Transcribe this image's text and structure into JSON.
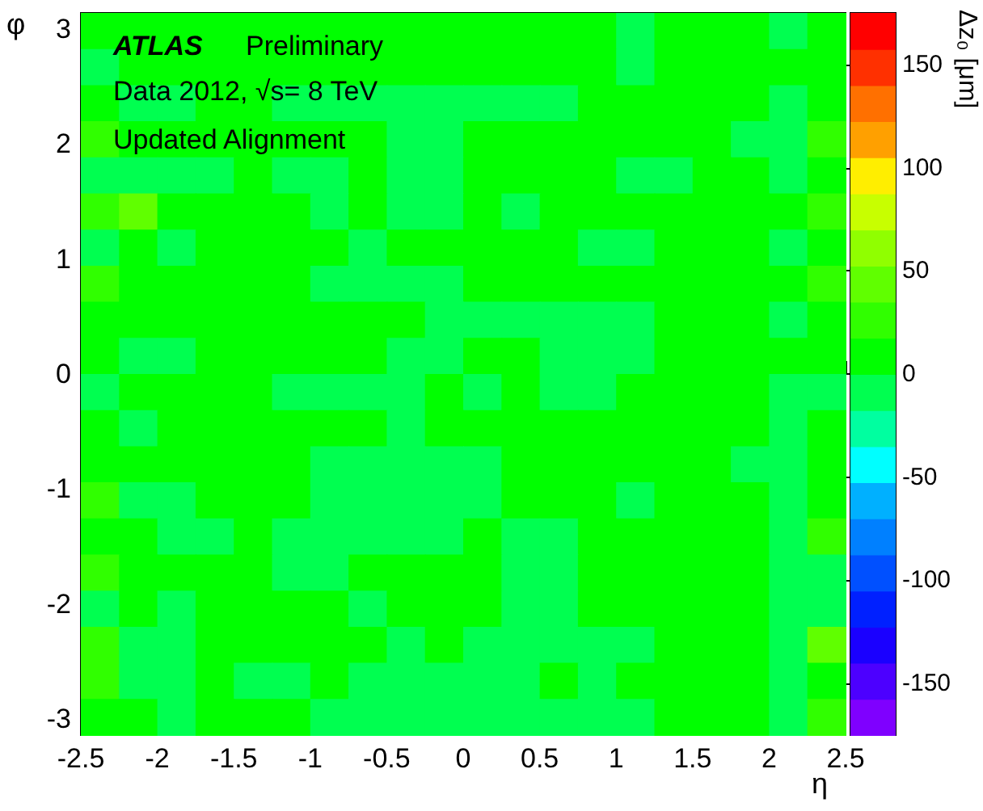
{
  "chart_data": {
    "type": "heatmap",
    "xlabel": "η",
    "ylabel": "φ",
    "clabel": "Δz₀ [μm]",
    "annotations": [
      "ATLAS",
      "Preliminary",
      "Data 2012, √s= 8 TeV",
      "Updated Alignment"
    ],
    "xlim": [
      -2.5,
      2.5
    ],
    "xticks": [
      -2.5,
      -2,
      -1.5,
      -1,
      -0.5,
      0,
      0.5,
      1,
      1.5,
      2,
      2.5
    ],
    "ylim": [
      -3.1416,
      3.1416
    ],
    "yticks": [
      -3,
      -2,
      -1,
      0,
      1,
      2,
      3
    ],
    "clim": [
      -175,
      175
    ],
    "cticks": [
      -150,
      -100,
      -50,
      0,
      50,
      100,
      150
    ],
    "cells": [
      [
        8,
        8,
        8,
        8,
        8,
        8,
        8,
        8,
        8,
        8,
        8,
        8,
        8,
        8,
        -8,
        8,
        8,
        8,
        -8,
        8
      ],
      [
        -8,
        8,
        8,
        8,
        8,
        8,
        8,
        8,
        8,
        8,
        8,
        8,
        8,
        8,
        -8,
        8,
        8,
        8,
        8,
        8
      ],
      [
        8,
        -8,
        -8,
        8,
        8,
        -8,
        -8,
        -8,
        -8,
        -8,
        -8,
        -8,
        -8,
        8,
        8,
        8,
        8,
        8,
        -8,
        8
      ],
      [
        25,
        8,
        8,
        8,
        8,
        8,
        8,
        8,
        -8,
        -8,
        8,
        8,
        8,
        8,
        8,
        8,
        8,
        -8,
        -8,
        25
      ],
      [
        -8,
        -8,
        -8,
        -8,
        8,
        -8,
        -8,
        8,
        -8,
        -8,
        8,
        8,
        8,
        8,
        -8,
        -8,
        8,
        8,
        -8,
        8
      ],
      [
        25,
        45,
        8,
        8,
        8,
        8,
        -8,
        8,
        -8,
        -8,
        8,
        -8,
        8,
        8,
        8,
        8,
        8,
        8,
        8,
        25
      ],
      [
        -8,
        8,
        -8,
        8,
        8,
        8,
        8,
        -8,
        8,
        8,
        8,
        8,
        8,
        -8,
        -8,
        8,
        8,
        8,
        -8,
        8
      ],
      [
        25,
        8,
        8,
        8,
        8,
        8,
        -8,
        -8,
        -8,
        -8,
        8,
        8,
        8,
        8,
        8,
        8,
        8,
        8,
        8,
        25
      ],
      [
        8,
        8,
        8,
        8,
        8,
        8,
        8,
        8,
        8,
        -8,
        -8,
        -8,
        -8,
        -8,
        -8,
        8,
        8,
        8,
        -8,
        8
      ],
      [
        8,
        -8,
        -8,
        8,
        8,
        8,
        8,
        8,
        -8,
        -8,
        8,
        8,
        -8,
        -8,
        -8,
        8,
        8,
        8,
        8,
        8
      ],
      [
        -8,
        8,
        8,
        8,
        8,
        -8,
        -8,
        -8,
        -8,
        8,
        -8,
        8,
        -8,
        -8,
        8,
        8,
        8,
        8,
        -8,
        -8
      ],
      [
        8,
        -8,
        8,
        8,
        8,
        8,
        8,
        8,
        -8,
        8,
        8,
        8,
        8,
        8,
        8,
        8,
        8,
        8,
        -8,
        8
      ],
      [
        8,
        8,
        8,
        8,
        8,
        8,
        -8,
        -8,
        -8,
        -8,
        -8,
        8,
        8,
        8,
        8,
        8,
        8,
        -8,
        -8,
        8
      ],
      [
        25,
        -8,
        -8,
        8,
        8,
        8,
        -8,
        -8,
        -8,
        -8,
        -8,
        8,
        8,
        8,
        -8,
        8,
        8,
        8,
        -8,
        8
      ],
      [
        8,
        8,
        -8,
        -8,
        8,
        -8,
        -8,
        -8,
        -8,
        -8,
        8,
        -8,
        -8,
        8,
        8,
        8,
        8,
        8,
        -8,
        25
      ],
      [
        25,
        8,
        8,
        8,
        8,
        -8,
        -8,
        8,
        8,
        8,
        8,
        -8,
        -8,
        8,
        8,
        8,
        8,
        8,
        -8,
        -8
      ],
      [
        -8,
        8,
        -8,
        8,
        8,
        8,
        8,
        -8,
        8,
        8,
        8,
        -8,
        -8,
        8,
        8,
        8,
        8,
        8,
        -8,
        -8
      ],
      [
        25,
        -8,
        -8,
        8,
        8,
        8,
        8,
        8,
        -8,
        8,
        -8,
        -8,
        -8,
        -8,
        -8,
        8,
        8,
        8,
        -8,
        45
      ],
      [
        25,
        -8,
        -8,
        8,
        -8,
        -8,
        8,
        -8,
        -8,
        -8,
        -8,
        -8,
        8,
        -8,
        8,
        8,
        8,
        8,
        -8,
        8
      ],
      [
        8,
        8,
        -8,
        8,
        8,
        8,
        -8,
        -8,
        -8,
        -8,
        -8,
        -8,
        -8,
        -8,
        -8,
        8,
        8,
        8,
        -8,
        25
      ]
    ]
  }
}
